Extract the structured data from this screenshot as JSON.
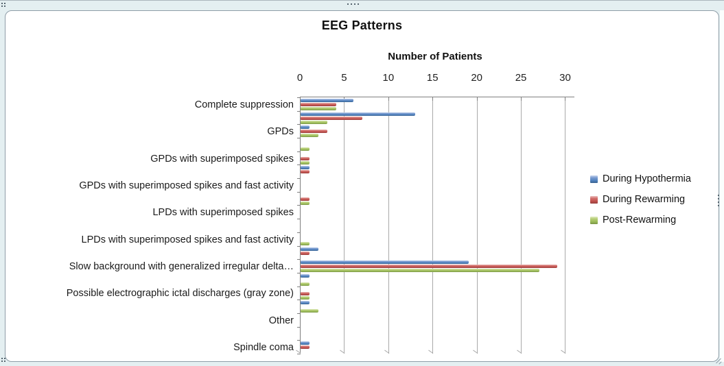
{
  "chart": {
    "title": "EEG Patterns",
    "axis_title": "Number of Patients",
    "legend": [
      {
        "label": "During Hypothermia",
        "color": "#4f81bd"
      },
      {
        "label": "During Rewarming",
        "color": "#c0504d"
      },
      {
        "label": "Post-Rewarming",
        "color": "#9bbb59"
      }
    ]
  },
  "chart_data": {
    "type": "bar",
    "orientation": "horizontal",
    "title": "EEG Patterns",
    "xlabel": "Number of Patients",
    "ylabel": "",
    "xlim": [
      0,
      30
    ],
    "x_ticks": [
      0,
      5,
      10,
      15,
      20,
      25,
      30
    ],
    "gridlines": "vertical",
    "legend_position": "right",
    "value_axis_position": "top",
    "note_unlabeled_rows": "rows with empty label have bars but their category label is not rendered in the image",
    "categories": [
      "Complete suppression",
      "",
      "GPDs",
      "",
      "GPDs with superimposed spikes",
      "",
      "GPDs with superimposed spikes and fast activity",
      "",
      "LPDs with superimposed spikes",
      "",
      "LPDs with superimposed spikes and fast activity",
      "",
      "Slow background with generalized irregular delta…",
      "",
      "Possible electrographic ictal discharges (gray zone)",
      "",
      "Other",
      "",
      "Spindle coma"
    ],
    "series": [
      {
        "name": "During Hypothermia",
        "color": "#4f81bd",
        "values": [
          6,
          13,
          1,
          0,
          0,
          1,
          0,
          0,
          0,
          0,
          0,
          2,
          19,
          1,
          0,
          1,
          0,
          0,
          1
        ]
      },
      {
        "name": "During Rewarming",
        "color": "#c0504d",
        "values": [
          4,
          7,
          3,
          0,
          1,
          1,
          0,
          1,
          0,
          0,
          0,
          1,
          29,
          0,
          1,
          0,
          0,
          0,
          1
        ]
      },
      {
        "name": "Post-Rewarming",
        "color": "#9bbb59",
        "values": [
          4,
          3,
          2,
          1,
          1,
          0,
          0,
          1,
          0,
          0,
          1,
          0,
          27,
          1,
          1,
          2,
          0,
          0,
          0
        ]
      }
    ]
  }
}
